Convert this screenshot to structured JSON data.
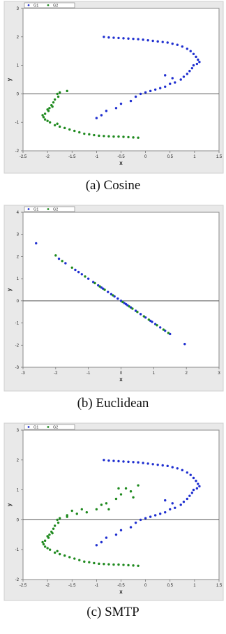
{
  "colors": {
    "G1": "#1f2fd0",
    "G2": "#1f8a1f",
    "frame": "#e9e9e9",
    "plot_bg": "#ffffff",
    "zero_line": "#555555"
  },
  "chart_data": [
    {
      "type": "scatter",
      "caption": "(a) Cosine",
      "xlabel": "x",
      "ylabel": "y",
      "xlim": [
        -2.5,
        1.5
      ],
      "ylim": [
        -2,
        3
      ],
      "xticks": [
        "-2.5",
        "-2",
        "-1.5",
        "-1",
        "-0.5",
        "0",
        "0.5",
        "1",
        "1.5"
      ],
      "yticks": [
        "-2",
        "-1",
        "0",
        "1",
        "2",
        "3"
      ],
      "legend": [
        "G1",
        "G2"
      ],
      "series": [
        {
          "name": "G1",
          "points": [
            [
              -0.85,
              2.0
            ],
            [
              -0.75,
              1.98
            ],
            [
              -0.65,
              1.97
            ],
            [
              -0.55,
              1.96
            ],
            [
              -0.45,
              1.95
            ],
            [
              -0.35,
              1.94
            ],
            [
              -0.25,
              1.93
            ],
            [
              -0.15,
              1.92
            ],
            [
              -0.05,
              1.9
            ],
            [
              0.05,
              1.88
            ],
            [
              0.15,
              1.86
            ],
            [
              0.25,
              1.84
            ],
            [
              0.35,
              1.82
            ],
            [
              0.45,
              1.8
            ],
            [
              0.55,
              1.76
            ],
            [
              0.65,
              1.72
            ],
            [
              0.75,
              1.66
            ],
            [
              0.85,
              1.58
            ],
            [
              0.92,
              1.5
            ],
            [
              0.98,
              1.4
            ],
            [
              1.03,
              1.3
            ],
            [
              1.07,
              1.2
            ],
            [
              1.1,
              1.12
            ],
            [
              1.05,
              1.05
            ],
            [
              0.98,
              1.0
            ],
            [
              0.95,
              0.9
            ],
            [
              0.9,
              0.8
            ],
            [
              0.85,
              0.7
            ],
            [
              0.78,
              0.6
            ],
            [
              0.72,
              0.5
            ],
            [
              0.6,
              0.4
            ],
            [
              0.5,
              0.35
            ],
            [
              0.4,
              0.25
            ],
            [
              0.3,
              0.2
            ],
            [
              0.2,
              0.15
            ],
            [
              0.1,
              0.1
            ],
            [
              0.0,
              0.05
            ],
            [
              -0.1,
              0.0
            ],
            [
              -0.2,
              -0.1
            ],
            [
              -0.3,
              -0.25
            ],
            [
              -0.5,
              -0.35
            ],
            [
              -0.6,
              -0.5
            ],
            [
              -0.8,
              -0.6
            ],
            [
              -0.9,
              -0.75
            ],
            [
              -1.0,
              -0.85
            ],
            [
              0.55,
              0.55
            ],
            [
              0.4,
              0.65
            ]
          ]
        },
        {
          "name": "G2",
          "points": [
            [
              -1.6,
              0.1
            ],
            [
              -1.75,
              0.05
            ],
            [
              -1.8,
              0.0
            ],
            [
              -1.78,
              -0.1
            ],
            [
              -1.85,
              -0.2
            ],
            [
              -1.88,
              -0.3
            ],
            [
              -1.92,
              -0.4
            ],
            [
              -1.96,
              -0.5
            ],
            [
              -2.0,
              -0.55
            ],
            [
              -1.98,
              -0.6
            ],
            [
              -2.05,
              -0.7
            ],
            [
              -2.1,
              -0.75
            ],
            [
              -2.08,
              -0.82
            ],
            [
              -2.05,
              -0.9
            ],
            [
              -2.0,
              -0.95
            ],
            [
              -1.95,
              -1.0
            ],
            [
              -1.85,
              -1.1
            ],
            [
              -1.75,
              -1.15
            ],
            [
              -1.65,
              -1.2
            ],
            [
              -1.55,
              -1.25
            ],
            [
              -1.45,
              -1.3
            ],
            [
              -1.35,
              -1.35
            ],
            [
              -1.25,
              -1.4
            ],
            [
              -1.15,
              -1.42
            ],
            [
              -1.05,
              -1.45
            ],
            [
              -0.95,
              -1.47
            ],
            [
              -0.85,
              -1.48
            ],
            [
              -0.75,
              -1.49
            ],
            [
              -0.65,
              -1.5
            ],
            [
              -0.55,
              -1.5
            ],
            [
              -0.45,
              -1.51
            ],
            [
              -0.35,
              -1.52
            ],
            [
              -0.25,
              -1.53
            ],
            [
              -0.15,
              -1.54
            ],
            [
              -1.8,
              -1.05
            ],
            [
              -1.9,
              -0.45
            ]
          ]
        }
      ]
    },
    {
      "type": "scatter",
      "caption": "(b) Euclidean",
      "xlabel": "x",
      "ylabel": "y",
      "xlim": [
        -3,
        3
      ],
      "ylim": [
        -3,
        4
      ],
      "xticks": [
        "-3",
        "-2",
        "-1",
        "0",
        "1",
        "2",
        "3"
      ],
      "yticks": [
        "-3",
        "-2",
        "-1",
        "0",
        "1",
        "2",
        "3",
        "4"
      ],
      "legend": [
        "G1",
        "G2"
      ],
      "series": [
        {
          "name": "G1",
          "points": [
            [
              -2.6,
              2.6
            ],
            [
              -1.9,
              1.9
            ],
            [
              -1.7,
              1.7
            ],
            [
              -1.4,
              1.4
            ],
            [
              -1.2,
              1.2
            ],
            [
              -1.0,
              1.0
            ],
            [
              -0.85,
              0.85
            ],
            [
              -0.7,
              0.7
            ],
            [
              -0.55,
              0.55
            ],
            [
              -0.4,
              0.4
            ],
            [
              -0.3,
              0.3
            ],
            [
              -0.2,
              0.2
            ],
            [
              -0.1,
              0.1
            ],
            [
              0.0,
              0.0
            ],
            [
              0.1,
              -0.1
            ],
            [
              0.2,
              -0.2
            ],
            [
              0.3,
              -0.3
            ],
            [
              0.45,
              -0.45
            ],
            [
              0.6,
              -0.6
            ],
            [
              0.75,
              -0.75
            ],
            [
              0.9,
              -0.9
            ],
            [
              1.05,
              -1.05
            ],
            [
              1.2,
              -1.2
            ],
            [
              1.35,
              -1.35
            ],
            [
              1.5,
              -1.5
            ],
            [
              1.95,
              -1.95
            ],
            [
              -1.3,
              1.3
            ],
            [
              0.15,
              -0.15
            ],
            [
              -0.6,
              0.6
            ],
            [
              0.95,
              -0.95
            ]
          ]
        },
        {
          "name": "G2",
          "points": [
            [
              -2.0,
              2.05
            ],
            [
              -1.8,
              1.8
            ],
            [
              -1.5,
              1.5
            ],
            [
              -1.1,
              1.1
            ],
            [
              -0.8,
              0.8
            ],
            [
              -0.5,
              0.5
            ],
            [
              -0.25,
              0.25
            ],
            [
              0.05,
              -0.05
            ],
            [
              0.25,
              -0.25
            ],
            [
              0.5,
              -0.5
            ],
            [
              0.7,
              -0.7
            ],
            [
              0.85,
              -0.85
            ],
            [
              1.1,
              -1.1
            ],
            [
              1.3,
              -1.3
            ],
            [
              1.45,
              -1.45
            ],
            [
              -0.65,
              0.65
            ],
            [
              0.35,
              -0.35
            ]
          ]
        }
      ]
    },
    {
      "type": "scatter",
      "caption": "(c) SMTP",
      "xlabel": "x",
      "ylabel": "y",
      "xlim": [
        -2.5,
        1.5
      ],
      "ylim": [
        -2,
        3
      ],
      "xticks": [
        "-2.5",
        "-2",
        "-1.5",
        "-1",
        "-0.5",
        "0",
        "0.5",
        "1",
        "1.5"
      ],
      "yticks": [
        "-2",
        "-1",
        "0",
        "1",
        "2",
        "3"
      ],
      "legend": [
        "G1",
        "G2"
      ],
      "series": [
        {
          "name": "G1",
          "points": [
            [
              -0.85,
              2.0
            ],
            [
              -0.75,
              1.98
            ],
            [
              -0.65,
              1.97
            ],
            [
              -0.55,
              1.96
            ],
            [
              -0.45,
              1.95
            ],
            [
              -0.35,
              1.94
            ],
            [
              -0.25,
              1.93
            ],
            [
              -0.15,
              1.92
            ],
            [
              -0.05,
              1.9
            ],
            [
              0.05,
              1.88
            ],
            [
              0.15,
              1.86
            ],
            [
              0.25,
              1.84
            ],
            [
              0.35,
              1.82
            ],
            [
              0.45,
              1.8
            ],
            [
              0.55,
              1.76
            ],
            [
              0.65,
              1.72
            ],
            [
              0.75,
              1.66
            ],
            [
              0.85,
              1.58
            ],
            [
              0.92,
              1.5
            ],
            [
              0.98,
              1.4
            ],
            [
              1.03,
              1.3
            ],
            [
              1.07,
              1.2
            ],
            [
              1.1,
              1.12
            ],
            [
              1.05,
              1.05
            ],
            [
              0.98,
              1.0
            ],
            [
              0.95,
              0.9
            ],
            [
              0.9,
              0.8
            ],
            [
              0.85,
              0.7
            ],
            [
              0.78,
              0.6
            ],
            [
              0.72,
              0.5
            ],
            [
              0.6,
              0.4
            ],
            [
              0.5,
              0.35
            ],
            [
              0.4,
              0.25
            ],
            [
              0.3,
              0.2
            ],
            [
              0.2,
              0.15
            ],
            [
              0.1,
              0.1
            ],
            [
              0.0,
              0.05
            ],
            [
              -0.1,
              0.0
            ],
            [
              -0.2,
              -0.1
            ],
            [
              -0.3,
              -0.25
            ],
            [
              -0.5,
              -0.35
            ],
            [
              -0.6,
              -0.5
            ],
            [
              -0.8,
              -0.6
            ],
            [
              -0.9,
              -0.75
            ],
            [
              -1.0,
              -0.85
            ],
            [
              0.55,
              0.55
            ],
            [
              0.4,
              0.65
            ]
          ]
        },
        {
          "name": "G2",
          "points": [
            [
              -1.6,
              0.1
            ],
            [
              -1.75,
              0.05
            ],
            [
              -1.8,
              0.0
            ],
            [
              -1.78,
              -0.1
            ],
            [
              -1.85,
              -0.2
            ],
            [
              -1.88,
              -0.3
            ],
            [
              -1.92,
              -0.4
            ],
            [
              -1.96,
              -0.5
            ],
            [
              -2.0,
              -0.55
            ],
            [
              -1.98,
              -0.6
            ],
            [
              -2.05,
              -0.7
            ],
            [
              -2.1,
              -0.75
            ],
            [
              -2.08,
              -0.82
            ],
            [
              -2.05,
              -0.9
            ],
            [
              -2.0,
              -0.95
            ],
            [
              -1.95,
              -1.0
            ],
            [
              -1.85,
              -1.1
            ],
            [
              -1.75,
              -1.15
            ],
            [
              -1.65,
              -1.2
            ],
            [
              -1.55,
              -1.25
            ],
            [
              -1.45,
              -1.3
            ],
            [
              -1.35,
              -1.35
            ],
            [
              -1.25,
              -1.4
            ],
            [
              -1.15,
              -1.42
            ],
            [
              -1.05,
              -1.45
            ],
            [
              -0.95,
              -1.47
            ],
            [
              -0.85,
              -1.48
            ],
            [
              -0.75,
              -1.49
            ],
            [
              -0.65,
              -1.5
            ],
            [
              -0.55,
              -1.5
            ],
            [
              -0.45,
              -1.51
            ],
            [
              -0.35,
              -1.52
            ],
            [
              -0.25,
              -1.53
            ],
            [
              -0.15,
              -1.54
            ],
            [
              -1.8,
              -1.05
            ],
            [
              -1.9,
              -0.45
            ],
            [
              -1.3,
              0.35
            ],
            [
              -1.2,
              0.25
            ],
            [
              -1.4,
              0.2
            ],
            [
              -1.5,
              0.3
            ],
            [
              -0.9,
              0.5
            ],
            [
              -0.8,
              0.55
            ],
            [
              -0.6,
              0.7
            ],
            [
              -0.5,
              0.85
            ],
            [
              -0.4,
              1.05
            ],
            [
              -0.3,
              0.95
            ],
            [
              -0.25,
              0.75
            ],
            [
              -0.15,
              1.15
            ],
            [
              -0.55,
              1.05
            ],
            [
              -1.0,
              0.35
            ],
            [
              -0.75,
              0.35
            ],
            [
              -1.6,
              0.15
            ]
          ]
        }
      ]
    }
  ]
}
